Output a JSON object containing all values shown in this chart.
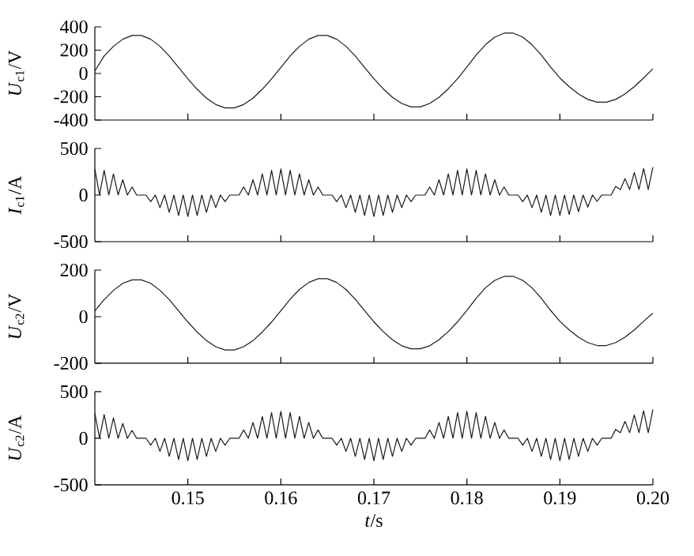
{
  "chart_data": [
    {
      "type": "line",
      "ylabel": "*U*$_{c1}$/V",
      "xlim": [
        0.14,
        0.2
      ],
      "xticks": [
        0.15,
        0.16,
        0.17,
        0.18,
        0.19,
        0.2
      ],
      "ylim": [
        -400,
        400
      ],
      "yticks": [
        -400,
        -200,
        0,
        200,
        400
      ],
      "tick_labels": "y",
      "x": [
        0.14,
        0.141,
        0.142,
        0.143,
        0.144,
        0.145,
        0.146,
        0.147,
        0.148,
        0.149,
        0.15,
        0.151,
        0.152,
        0.153,
        0.154,
        0.155,
        0.156,
        0.157,
        0.158,
        0.159,
        0.16,
        0.161,
        0.162,
        0.163,
        0.164,
        0.165,
        0.166,
        0.167,
        0.168,
        0.169,
        0.17,
        0.171,
        0.172,
        0.173,
        0.174,
        0.175,
        0.176,
        0.177,
        0.178,
        0.179,
        0.18,
        0.181,
        0.182,
        0.183,
        0.184,
        0.185,
        0.186,
        0.187,
        0.188,
        0.189,
        0.19,
        0.191,
        0.192,
        0.193,
        0.194,
        0.195,
        0.196,
        0.197,
        0.198,
        0.199,
        0.2
      ],
      "series": [
        {
          "color": "#1a1a1a",
          "values": [
            20,
            150,
            233,
            294,
            326,
            326,
            294,
            233,
            150,
            51,
            -47,
            -136,
            -212,
            -267,
            -296,
            -296,
            -267,
            -212,
            -136,
            -47,
            51,
            150,
            233,
            294,
            326,
            326,
            294,
            233,
            150,
            51,
            -45,
            -132,
            -205,
            -258,
            -287,
            -287,
            -258,
            -205,
            -132,
            -45,
            55,
            159,
            247,
            312,
            346,
            346,
            312,
            247,
            159,
            55,
            -39,
            -114,
            -177,
            -223,
            -247,
            -247,
            -223,
            -177,
            -114,
            -39,
            40
          ]
        }
      ]
    },
    {
      "type": "line",
      "ylabel": "*I*$_{c1}$/A",
      "xlim": [
        0.14,
        0.2
      ],
      "xticks": [
        0.15,
        0.16,
        0.17,
        0.18,
        0.19,
        0.2
      ],
      "ylim": [
        -500,
        500
      ],
      "yticks": [
        -500,
        0,
        500
      ],
      "tick_labels": "y",
      "x": [
        0.14,
        0.1405,
        0.141,
        0.1415,
        0.142,
        0.1425,
        0.143,
        0.1435,
        0.144,
        0.1445,
        0.145,
        0.1455,
        0.146,
        0.1465,
        0.147,
        0.1475,
        0.148,
        0.1485,
        0.149,
        0.1495,
        0.15,
        0.1505,
        0.151,
        0.1515,
        0.152,
        0.1525,
        0.153,
        0.1535,
        0.154,
        0.1545,
        0.155,
        0.1555,
        0.156,
        0.1565,
        0.157,
        0.1575,
        0.158,
        0.1585,
        0.159,
        0.1595,
        0.16,
        0.1605,
        0.161,
        0.1615,
        0.162,
        0.1625,
        0.163,
        0.1635,
        0.164,
        0.1645,
        0.165,
        0.1655,
        0.166,
        0.1665,
        0.167,
        0.1675,
        0.168,
        0.1685,
        0.169,
        0.1695,
        0.17,
        0.1705,
        0.171,
        0.1715,
        0.172,
        0.1725,
        0.173,
        0.1735,
        0.174,
        0.1745,
        0.175,
        0.1755,
        0.176,
        0.1765,
        0.177,
        0.1775,
        0.178,
        0.1785,
        0.179,
        0.1795,
        0.18,
        0.1805,
        0.181,
        0.1815,
        0.182,
        0.1825,
        0.183,
        0.1835,
        0.184,
        0.1845,
        0.185,
        0.1855,
        0.186,
        0.1865,
        0.187,
        0.1875,
        0.188,
        0.1885,
        0.189,
        0.1895,
        0.19,
        0.1905,
        0.191,
        0.1915,
        0.192,
        0.1925,
        0.193,
        0.1935,
        0.194,
        0.1945,
        0.195,
        0.1955,
        0.196,
        0.1965,
        0.197,
        0.1975,
        0.198,
        0.1985,
        0.199,
        0.1995,
        0.2
      ],
      "series": [
        {
          "color": "#1a1a1a",
          "values": [
            280,
            0,
            266,
            0,
            227,
            0,
            165,
            0,
            87,
            0,
            0,
            0,
            -71,
            0,
            -135,
            0,
            -186,
            0,
            -219,
            0,
            -230,
            0,
            -219,
            0,
            -186,
            0,
            -135,
            0,
            -71,
            0,
            0,
            0,
            87,
            0,
            165,
            0,
            227,
            0,
            266,
            0,
            280,
            0,
            266,
            0,
            227,
            0,
            165,
            0,
            87,
            0,
            0,
            0,
            -71,
            0,
            -135,
            0,
            -186,
            0,
            -219,
            0,
            -230,
            0,
            -219,
            0,
            -186,
            0,
            -135,
            0,
            -71,
            0,
            0,
            0,
            87,
            0,
            165,
            0,
            227,
            0,
            266,
            0,
            280,
            0,
            266,
            0,
            227,
            0,
            165,
            0,
            87,
            0,
            0,
            0,
            -71,
            0,
            -135,
            0,
            -186,
            0,
            -219,
            0,
            -220,
            0,
            -209,
            0,
            -178,
            0,
            -129,
            0,
            -68,
            0,
            0,
            0,
            93,
            60,
            176,
            60,
            242,
            60,
            284,
            60,
            300
          ]
        }
      ]
    },
    {
      "type": "line",
      "ylabel": "*U*$_{c2}$/V",
      "xlim": [
        0.14,
        0.2
      ],
      "xticks": [
        0.15,
        0.16,
        0.17,
        0.18,
        0.19,
        0.2
      ],
      "ylim": [
        -200,
        200
      ],
      "yticks": [
        -200,
        0,
        200
      ],
      "tick_labels": "y",
      "x": [
        0.14,
        0.141,
        0.142,
        0.143,
        0.144,
        0.145,
        0.146,
        0.147,
        0.148,
        0.149,
        0.15,
        0.151,
        0.152,
        0.153,
        0.154,
        0.155,
        0.156,
        0.157,
        0.158,
        0.159,
        0.16,
        0.161,
        0.162,
        0.163,
        0.164,
        0.165,
        0.166,
        0.167,
        0.168,
        0.169,
        0.17,
        0.171,
        0.172,
        0.173,
        0.174,
        0.175,
        0.176,
        0.177,
        0.178,
        0.179,
        0.18,
        0.181,
        0.182,
        0.183,
        0.184,
        0.185,
        0.186,
        0.187,
        0.188,
        0.189,
        0.19,
        0.191,
        0.192,
        0.193,
        0.194,
        0.195,
        0.196,
        0.197,
        0.198,
        0.199,
        0.2
      ],
      "series": [
        {
          "color": "#1a1a1a",
          "values": [
            25,
            73,
            113,
            143,
            158,
            158,
            143,
            113,
            73,
            25,
            -23,
            -66,
            -103,
            -129,
            -143,
            -143,
            -129,
            -103,
            -66,
            -23,
            26,
            75,
            117,
            147,
            163,
            163,
            147,
            117,
            75,
            26,
            -22,
            -64,
            -99,
            -125,
            -138,
            -138,
            -125,
            -99,
            -64,
            -22,
            27,
            79,
            124,
            156,
            173,
            173,
            156,
            124,
            79,
            27,
            -20,
            -57,
            -88,
            -111,
            -124,
            -124,
            -111,
            -88,
            -57,
            -20,
            15
          ]
        }
      ]
    },
    {
      "type": "line",
      "ylabel": "*U*$_{c2}$/A",
      "xlabel": "*t*/s",
      "xlim": [
        0.14,
        0.2
      ],
      "xticks": [
        0.15,
        0.16,
        0.17,
        0.18,
        0.19,
        {
          "value": 0.2,
          "label": "0.20"
        }
      ],
      "ylim": [
        -500,
        500
      ],
      "yticks": [
        -500,
        0,
        500
      ],
      "x": [
        0.14,
        0.1405,
        0.141,
        0.1415,
        0.142,
        0.1425,
        0.143,
        0.1435,
        0.144,
        0.1445,
        0.145,
        0.1455,
        0.146,
        0.1465,
        0.147,
        0.1475,
        0.148,
        0.1485,
        0.149,
        0.1495,
        0.15,
        0.1505,
        0.151,
        0.1515,
        0.152,
        0.1525,
        0.153,
        0.1535,
        0.154,
        0.1545,
        0.155,
        0.1555,
        0.156,
        0.1565,
        0.157,
        0.1575,
        0.158,
        0.1585,
        0.159,
        0.1595,
        0.16,
        0.1605,
        0.161,
        0.1615,
        0.162,
        0.1625,
        0.163,
        0.1635,
        0.164,
        0.1645,
        0.165,
        0.1655,
        0.166,
        0.1665,
        0.167,
        0.1675,
        0.168,
        0.1685,
        0.169,
        0.1695,
        0.17,
        0.1705,
        0.171,
        0.1715,
        0.172,
        0.1725,
        0.173,
        0.1735,
        0.174,
        0.1745,
        0.175,
        0.1755,
        0.176,
        0.1765,
        0.177,
        0.1775,
        0.178,
        0.1785,
        0.179,
        0.1795,
        0.18,
        0.1805,
        0.181,
        0.1815,
        0.182,
        0.1825,
        0.183,
        0.1835,
        0.184,
        0.1845,
        0.185,
        0.1855,
        0.186,
        0.1865,
        0.187,
        0.1875,
        0.188,
        0.1885,
        0.189,
        0.1895,
        0.19,
        0.1905,
        0.191,
        0.1915,
        0.192,
        0.1925,
        0.193,
        0.1935,
        0.194,
        0.1945,
        0.195,
        0.1955,
        0.196,
        0.1965,
        0.197,
        0.1975,
        0.198,
        0.1985,
        0.199,
        0.1995,
        0.2
      ],
      "series": [
        {
          "color": "#1a1a1a",
          "values": [
            270,
            0,
            256,
            0,
            220,
            0,
            160,
            0,
            85,
            0,
            0,
            0,
            -74,
            0,
            -141,
            0,
            -194,
            0,
            -228,
            0,
            -240,
            0,
            -228,
            0,
            -194,
            0,
            -141,
            0,
            -74,
            0,
            0,
            0,
            90,
            0,
            171,
            0,
            235,
            0,
            276,
            0,
            290,
            0,
            276,
            0,
            235,
            0,
            171,
            0,
            90,
            0,
            0,
            0,
            -74,
            0,
            -141,
            0,
            -194,
            0,
            -228,
            0,
            -240,
            0,
            -228,
            0,
            -194,
            0,
            -141,
            0,
            -74,
            0,
            0,
            0,
            90,
            0,
            171,
            0,
            235,
            0,
            276,
            0,
            290,
            0,
            276,
            0,
            235,
            0,
            171,
            0,
            90,
            0,
            0,
            0,
            -74,
            0,
            -141,
            0,
            -194,
            0,
            -228,
            0,
            -240,
            0,
            -228,
            0,
            -194,
            0,
            -141,
            0,
            -74,
            0,
            0,
            0,
            96,
            60,
            182,
            60,
            251,
            60,
            295,
            60,
            310
          ]
        }
      ]
    }
  ]
}
